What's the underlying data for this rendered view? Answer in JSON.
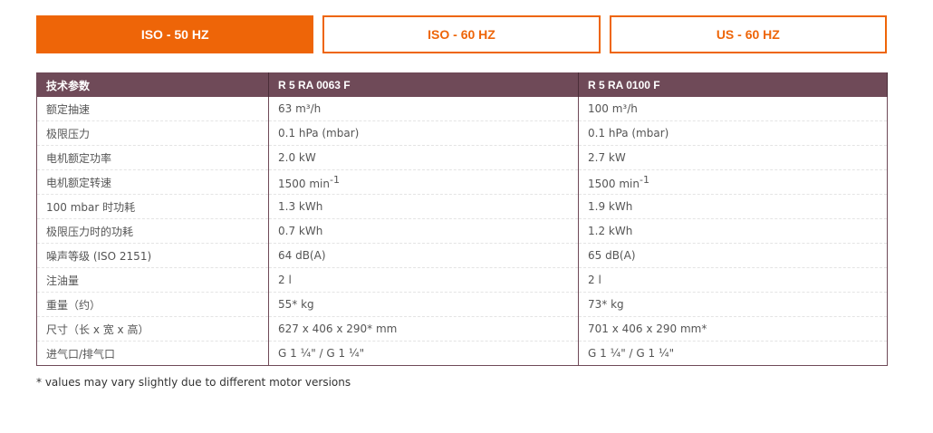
{
  "tabs": [
    {
      "label": "ISO - 50 HZ",
      "active": true
    },
    {
      "label": "ISO - 60 HZ",
      "active": false
    },
    {
      "label": "US - 60 HZ",
      "active": false
    }
  ],
  "table": {
    "headers": [
      "技术参数",
      "R 5 RA 0063 F",
      "R 5 RA 0100 F"
    ],
    "rows": [
      [
        "额定抽速",
        "63 m³/h",
        "100 m³/h"
      ],
      [
        "极限压力",
        "0.1 hPa (mbar)",
        "0.1 hPa (mbar)"
      ],
      [
        "电机额定功率",
        "2.0 kW",
        "2.7 kW"
      ],
      [
        "电机额定转速",
        "1500 min",
        "1500 min"
      ],
      [
        "100 mbar 时功耗",
        "1.3 kWh",
        "1.9 kWh"
      ],
      [
        "极限压力时的功耗",
        "0.7 kWh",
        "1.2 kWh"
      ],
      [
        "噪声等级 (ISO 2151)",
        "64 dB(A)",
        "65 dB(A)"
      ],
      [
        "注油量",
        "2 l",
        "2 l"
      ],
      [
        "重量（约）",
        "55* kg",
        "73* kg"
      ],
      [
        "尺寸（长 x 宽 x 高）",
        "627 x 406 x 290* mm",
        "701 x 406 x 290 mm*"
      ],
      [
        "进气口/排气口",
        "G 1 ¼\" / G 1 ¼\"",
        "G 1 ¼\" / G 1 ¼\""
      ]
    ],
    "speed_exponent": "-1"
  },
  "footnote": "* values may vary slightly due to different motor versions",
  "colors": {
    "accent": "#ee6508",
    "header": "#6f4a58"
  }
}
